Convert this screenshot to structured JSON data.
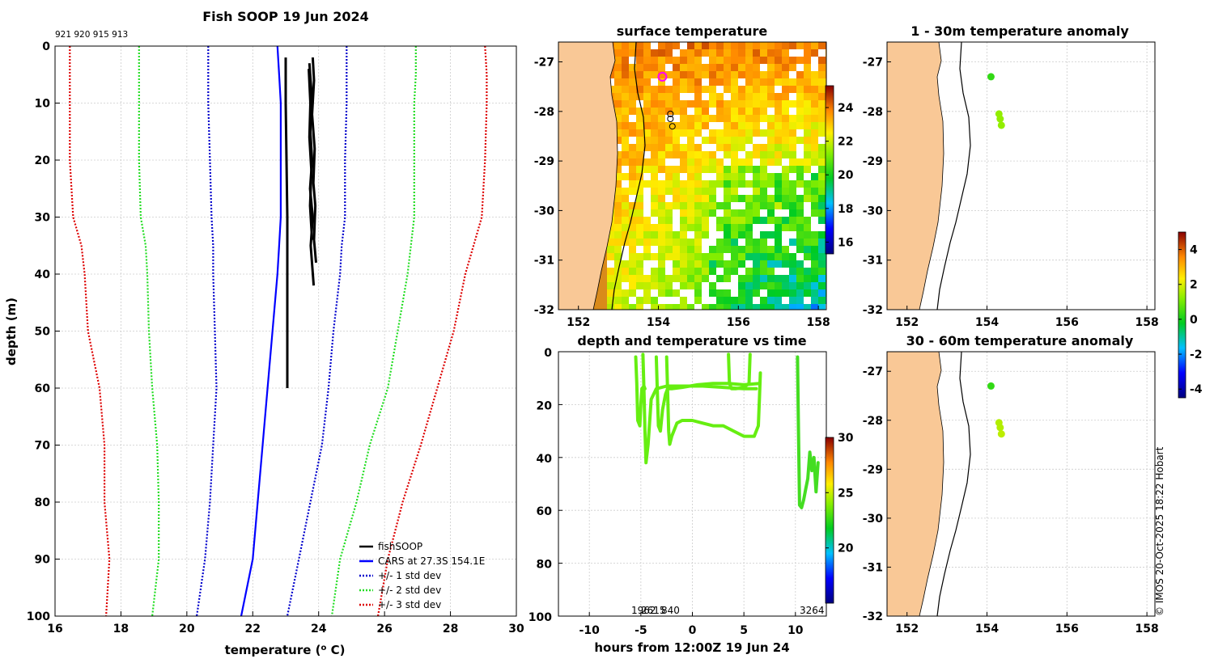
{
  "colors": {
    "cars": "#0000ff",
    "std1": "#0000cc",
    "std2": "#22dd22",
    "std3": "#dd0000",
    "fishsoop": "#000000",
    "land": "#f9c896",
    "grid": "#cccccc",
    "dot": "#66ee11"
  },
  "chart_data": [
    {
      "type": "line",
      "id": "profile",
      "title": "Fish SOOP 19 Jun 2024",
      "xlabel": "temperature (",
      "xlabel_sup": "o",
      "xlabel_tail": " C)",
      "ylabel": "depth (m)",
      "xlim": [
        16,
        30
      ],
      "ylim": [
        0,
        100
      ],
      "xticks": [
        "16",
        "18",
        "20",
        "22",
        "24",
        "26",
        "28",
        "30"
      ],
      "yticks": [
        "0",
        "10",
        "20",
        "30",
        "40",
        "50",
        "60",
        "70",
        "80",
        "90",
        "100"
      ],
      "top_labels": "921 920 915 913",
      "legend": [
        "fishSOOP",
        "CARS at 27.3S 154.1E",
        "+/- 1 std dev",
        "+/- 2 std dev",
        "+/- 3 std dev"
      ],
      "depths": [
        0,
        5,
        10,
        20,
        30,
        35,
        40,
        50,
        60,
        70,
        80,
        90,
        100
      ],
      "cars_mean": [
        22.75,
        22.8,
        22.85,
        22.85,
        22.85,
        22.8,
        22.75,
        22.6,
        22.45,
        22.3,
        22.15,
        22.0,
        21.65
      ],
      "std1_lo": [
        20.65,
        20.65,
        20.65,
        20.7,
        20.75,
        20.8,
        20.8,
        20.85,
        20.9,
        20.8,
        20.7,
        20.55,
        20.3
      ],
      "std1_hi": [
        24.85,
        24.85,
        24.85,
        24.8,
        24.8,
        24.7,
        24.65,
        24.45,
        24.3,
        24.1,
        23.75,
        23.4,
        23.05
      ],
      "std2_lo": [
        18.55,
        18.55,
        18.55,
        18.55,
        18.6,
        18.75,
        18.8,
        18.85,
        18.95,
        19.1,
        19.15,
        19.15,
        18.95
      ],
      "std2_hi": [
        26.95,
        26.95,
        26.9,
        26.9,
        26.9,
        26.8,
        26.7,
        26.4,
        26.1,
        25.55,
        25.15,
        24.65,
        24.4
      ],
      "std3_lo": [
        16.45,
        16.45,
        16.45,
        16.45,
        16.55,
        16.8,
        16.9,
        17.0,
        17.35,
        17.5,
        17.5,
        17.65,
        17.55
      ],
      "std3_hi": [
        29.05,
        29.1,
        29.1,
        29.05,
        28.95,
        28.7,
        28.45,
        28.1,
        27.6,
        27.1,
        26.55,
        26.1,
        25.8
      ],
      "fish_casts": [
        {
          "t": [
            23.0,
            23.0,
            23.05,
            23.05,
            23.05
          ],
          "d": [
            2,
            10,
            30,
            50,
            60
          ]
        },
        {
          "t": [
            23.72,
            23.78,
            23.75,
            23.8,
            23.74,
            23.82,
            23.76,
            23.85
          ],
          "d": [
            3,
            8,
            15,
            20,
            25,
            30,
            35,
            42
          ]
        },
        {
          "t": [
            23.82,
            23.86,
            23.8,
            23.88,
            23.84,
            23.9,
            23.86,
            23.92
          ],
          "d": [
            2,
            6,
            12,
            18,
            24,
            28,
            34,
            38
          ]
        },
        {
          "t": [
            23.7,
            23.75,
            23.72,
            23.78,
            23.74,
            23.8
          ],
          "d": [
            4,
            10,
            16,
            22,
            28,
            34
          ]
        }
      ]
    },
    {
      "type": "heatmap",
      "id": "surface",
      "title": "surface temperature",
      "xticks": [
        "152",
        "154",
        "156",
        "158"
      ],
      "yticks": [
        "-27",
        "-28",
        "-29",
        "-30",
        "-31",
        "-32"
      ],
      "colorbar_ticks": [
        "16",
        "18",
        "20",
        "22",
        "24"
      ],
      "colorbar_range": [
        15.3,
        25.3
      ],
      "markers": [
        {
          "lon": 154.1,
          "lat": -27.3,
          "kind": "current"
        },
        {
          "lon": 154.3,
          "lat": -28.05,
          "kind": "past"
        },
        {
          "lon": 154.3,
          "lat": -28.15,
          "kind": "past"
        },
        {
          "lon": 154.35,
          "lat": -28.3,
          "kind": "past"
        }
      ]
    },
    {
      "type": "scatter",
      "id": "timeseries",
      "title": "depth and temperature vs time",
      "xlabel": "hours from 12:00Z 19 Jun 24",
      "xlim": [
        -13,
        13
      ],
      "ylim": [
        0,
        100
      ],
      "xticks": [
        "-10",
        "-5",
        "0",
        "5",
        "10"
      ],
      "yticks": [
        "0",
        "20",
        "40",
        "60",
        "80",
        "100"
      ],
      "bottom_labels": [
        "1962",
        "2615",
        "840",
        "3264"
      ],
      "colorbar_ticks": [
        "20",
        "25",
        "30"
      ],
      "colorbar_range": [
        15,
        30
      ],
      "traces": [
        {
          "h": [
            -5.5,
            -5.4,
            -5.3,
            -5.1,
            -5.0,
            -4.9,
            -4.7,
            -4.6
          ],
          "d": [
            2,
            12,
            26,
            28,
            20,
            14,
            13,
            14
          ]
        },
        {
          "h": [
            -4.8,
            -4.7,
            -4.6,
            -4.5,
            -4.3,
            -4.0,
            -3.5,
            -2.5,
            -1,
            1,
            3,
            5,
            6.2
          ],
          "d": [
            1,
            15,
            30,
            42,
            35,
            18,
            14,
            13,
            13,
            13,
            13.5,
            14,
            14
          ]
        },
        {
          "h": [
            -3.5,
            -3.4,
            -3.3,
            -3.1,
            -2.9,
            -2.6,
            -2.4,
            -2.0,
            -1.0,
            0.5,
            2,
            3.5,
            5,
            6.5
          ],
          "d": [
            2,
            15,
            28,
            30,
            22,
            16,
            14,
            14,
            13.5,
            12.5,
            12,
            12,
            12.5,
            12
          ]
        },
        {
          "h": [
            -2.5,
            -2.4,
            -2.3,
            -2.2,
            -2.0,
            -1.5,
            -1,
            0,
            1,
            2,
            3,
            4,
            5,
            6,
            6.4,
            6.5,
            6.6
          ],
          "d": [
            2,
            15,
            30,
            35,
            32,
            27,
            26,
            26,
            27,
            28,
            28,
            30,
            32,
            32,
            28,
            18,
            8
          ]
        },
        {
          "h": [
            3.5,
            3.6,
            3.8,
            4.2,
            5.0,
            5.5,
            5.6
          ],
          "d": [
            1,
            12,
            14,
            14,
            13.5,
            12,
            1
          ]
        },
        {
          "h": [
            10.2,
            10.3,
            10.4,
            10.6,
            10.8,
            11.0,
            11.2,
            11.4,
            11.6,
            11.8,
            12.0,
            12.2
          ],
          "d": [
            2,
            30,
            58,
            59,
            56,
            52,
            48,
            38,
            45,
            40,
            53,
            42
          ]
        }
      ]
    },
    {
      "type": "scatter",
      "id": "anom_shallow",
      "title": "1 - 30m temperature anomaly",
      "xticks": [
        "152",
        "154",
        "156",
        "158"
      ],
      "yticks": [
        "-27",
        "-28",
        "-29",
        "-30",
        "-31",
        "-32"
      ],
      "points": [
        {
          "lon": 154.1,
          "lat": -27.3,
          "anomaly": 0.3
        },
        {
          "lon": 154.3,
          "lat": -28.05,
          "anomaly": 1.3
        },
        {
          "lon": 154.33,
          "lat": -28.15,
          "anomaly": 1.3
        },
        {
          "lon": 154.36,
          "lat": -28.28,
          "anomaly": 1.3
        }
      ]
    },
    {
      "type": "scatter",
      "id": "anom_deep",
      "title": "30 - 60m temperature anomaly",
      "xticks": [
        "152",
        "154",
        "156",
        "158"
      ],
      "yticks": [
        "-27",
        "-28",
        "-29",
        "-30",
        "-31",
        "-32"
      ],
      "points": [
        {
          "lon": 154.1,
          "lat": -27.3,
          "anomaly": 0.3
        },
        {
          "lon": 154.3,
          "lat": -28.05,
          "anomaly": 1.6
        },
        {
          "lon": 154.33,
          "lat": -28.15,
          "anomaly": 1.6
        },
        {
          "lon": 154.36,
          "lat": -28.28,
          "anomaly": 1.7
        }
      ]
    }
  ],
  "anomaly_colorbar": {
    "ticks": [
      "4",
      "2",
      "0",
      "-2",
      "-4"
    ],
    "range": [
      -4.5,
      5
    ]
  },
  "copyright": "© IMOS 20-Oct-2025 18:22 Hobart"
}
